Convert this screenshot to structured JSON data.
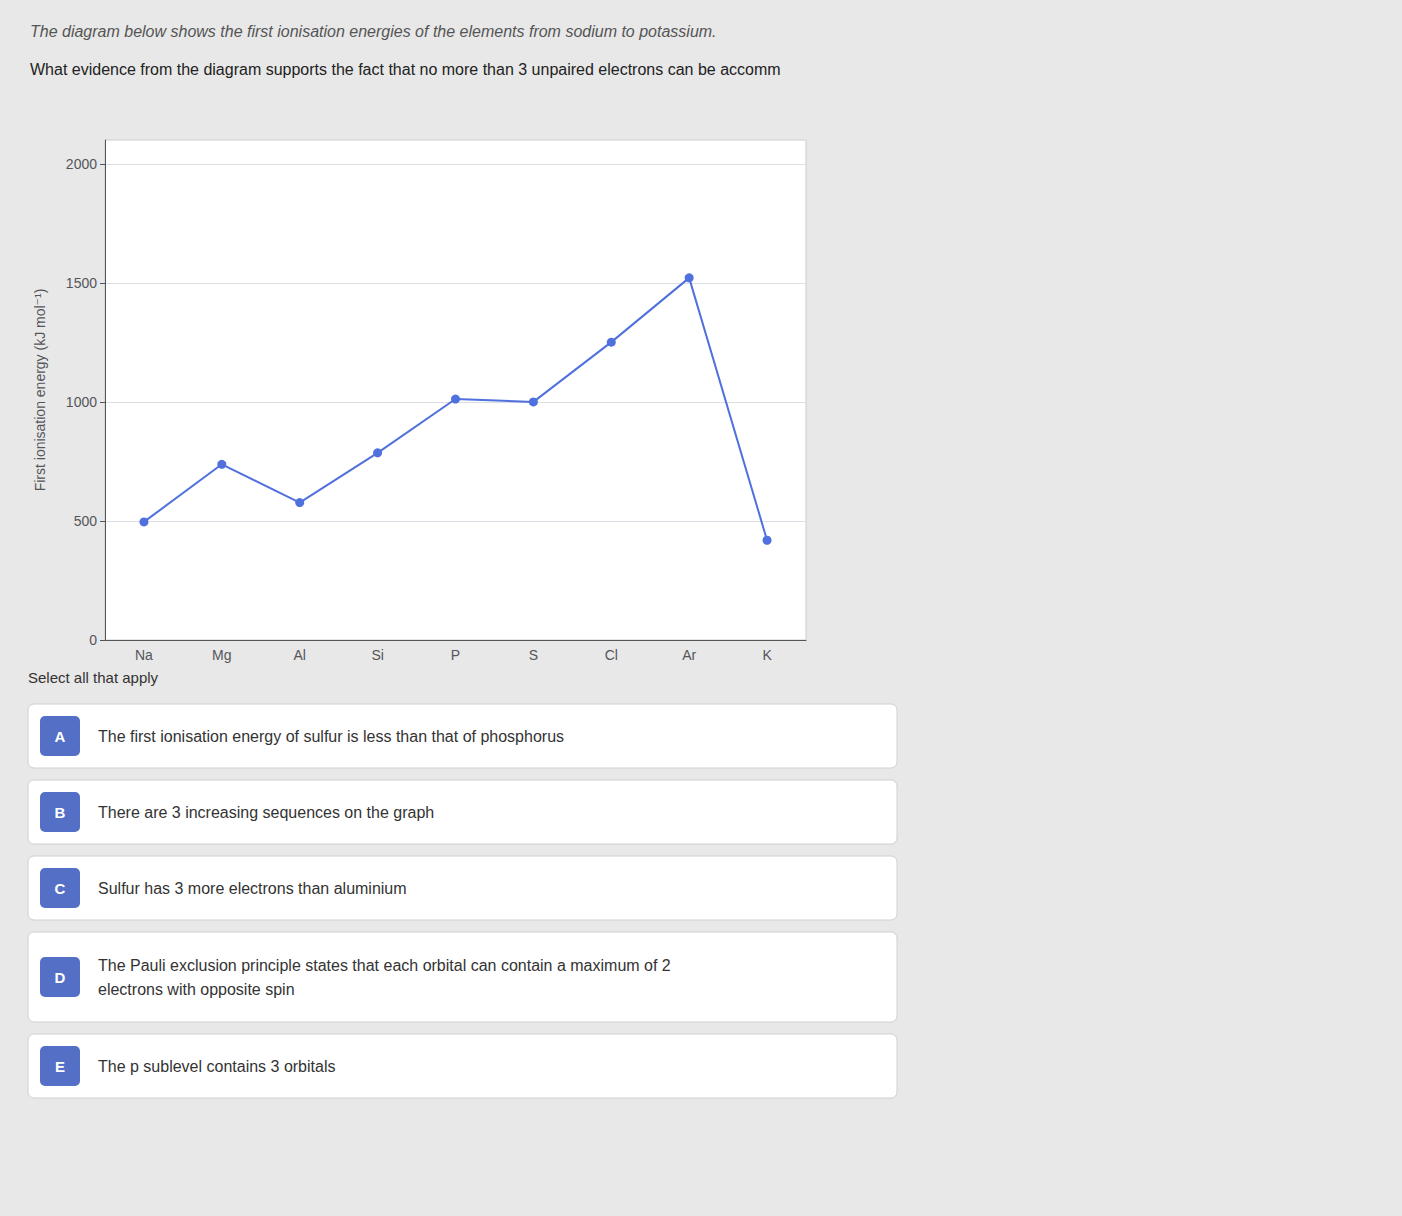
{
  "chart_data": {
    "type": "line",
    "title": "The diagram below shows the first ionisation energies of the elements from sodium to potassium.",
    "subtitle": "What evidence from the diagram supports the fact that no more than 3 unpaired electrons can be accomm",
    "categories": [
      "Na",
      "Mg",
      "Al",
      "Si",
      "P",
      "S",
      "Cl",
      "Ar",
      "K"
    ],
    "values": [
      496,
      738,
      577,
      786,
      1012,
      1000,
      1251,
      1521,
      419
    ],
    "ylabel": "First ionisation energy (kJ mol⁻¹)",
    "ylim": [
      0,
      2100
    ],
    "yticks": [
      0,
      500,
      1000,
      1500,
      2000
    ],
    "grid": true,
    "annotations": [
      "Select all that apply"
    ],
    "options": [
      {
        "letter": "A",
        "text": "The first ionisation energy of sulfur is less than that of phosphorus"
      },
      {
        "letter": "B",
        "text": "There are 3 increasing sequences on the graph"
      },
      {
        "letter": "C",
        "text": "Sulfur has 3 more electrons than aluminium"
      },
      {
        "letter": "D",
        "text": "The Pauli exclusion principle states that each orbital can contain a maximum of 2\nelectrons with opposite spin"
      },
      {
        "letter": "E",
        "text": "The p sublevel contains 3 orbitals"
      }
    ]
  }
}
